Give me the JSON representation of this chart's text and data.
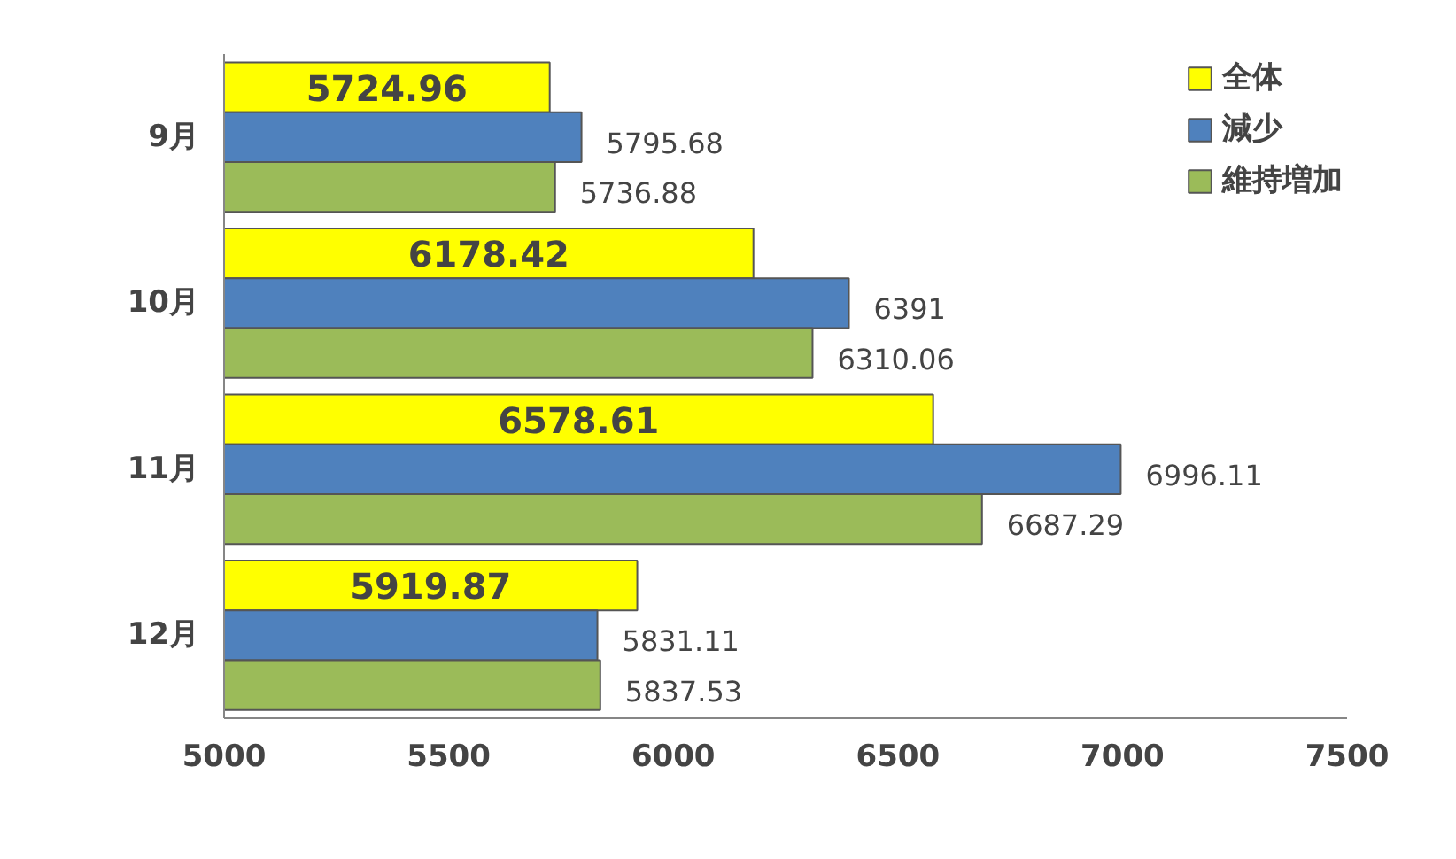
{
  "chart_data": {
    "type": "bar",
    "orientation": "horizontal",
    "categories": [
      "9月",
      "10月",
      "11月",
      "12月"
    ],
    "series": [
      {
        "name": "全体",
        "color": "#ffff00",
        "values": [
          5724.96,
          6178.42,
          6578.61,
          5919.87
        ]
      },
      {
        "name": "減少",
        "color": "#4f81bd",
        "values": [
          5795.68,
          6391,
          6996.11,
          5831.11
        ]
      },
      {
        "name": "維持増加",
        "color": "#9bbb59",
        "values": [
          5736.88,
          6310.06,
          6687.29,
          5837.53
        ]
      }
    ],
    "xlim": [
      5000,
      7500
    ],
    "xticks": [
      5000,
      5500,
      6000,
      6500,
      7000,
      7500
    ],
    "grid": false,
    "legend": "top right",
    "data_labels": true
  }
}
